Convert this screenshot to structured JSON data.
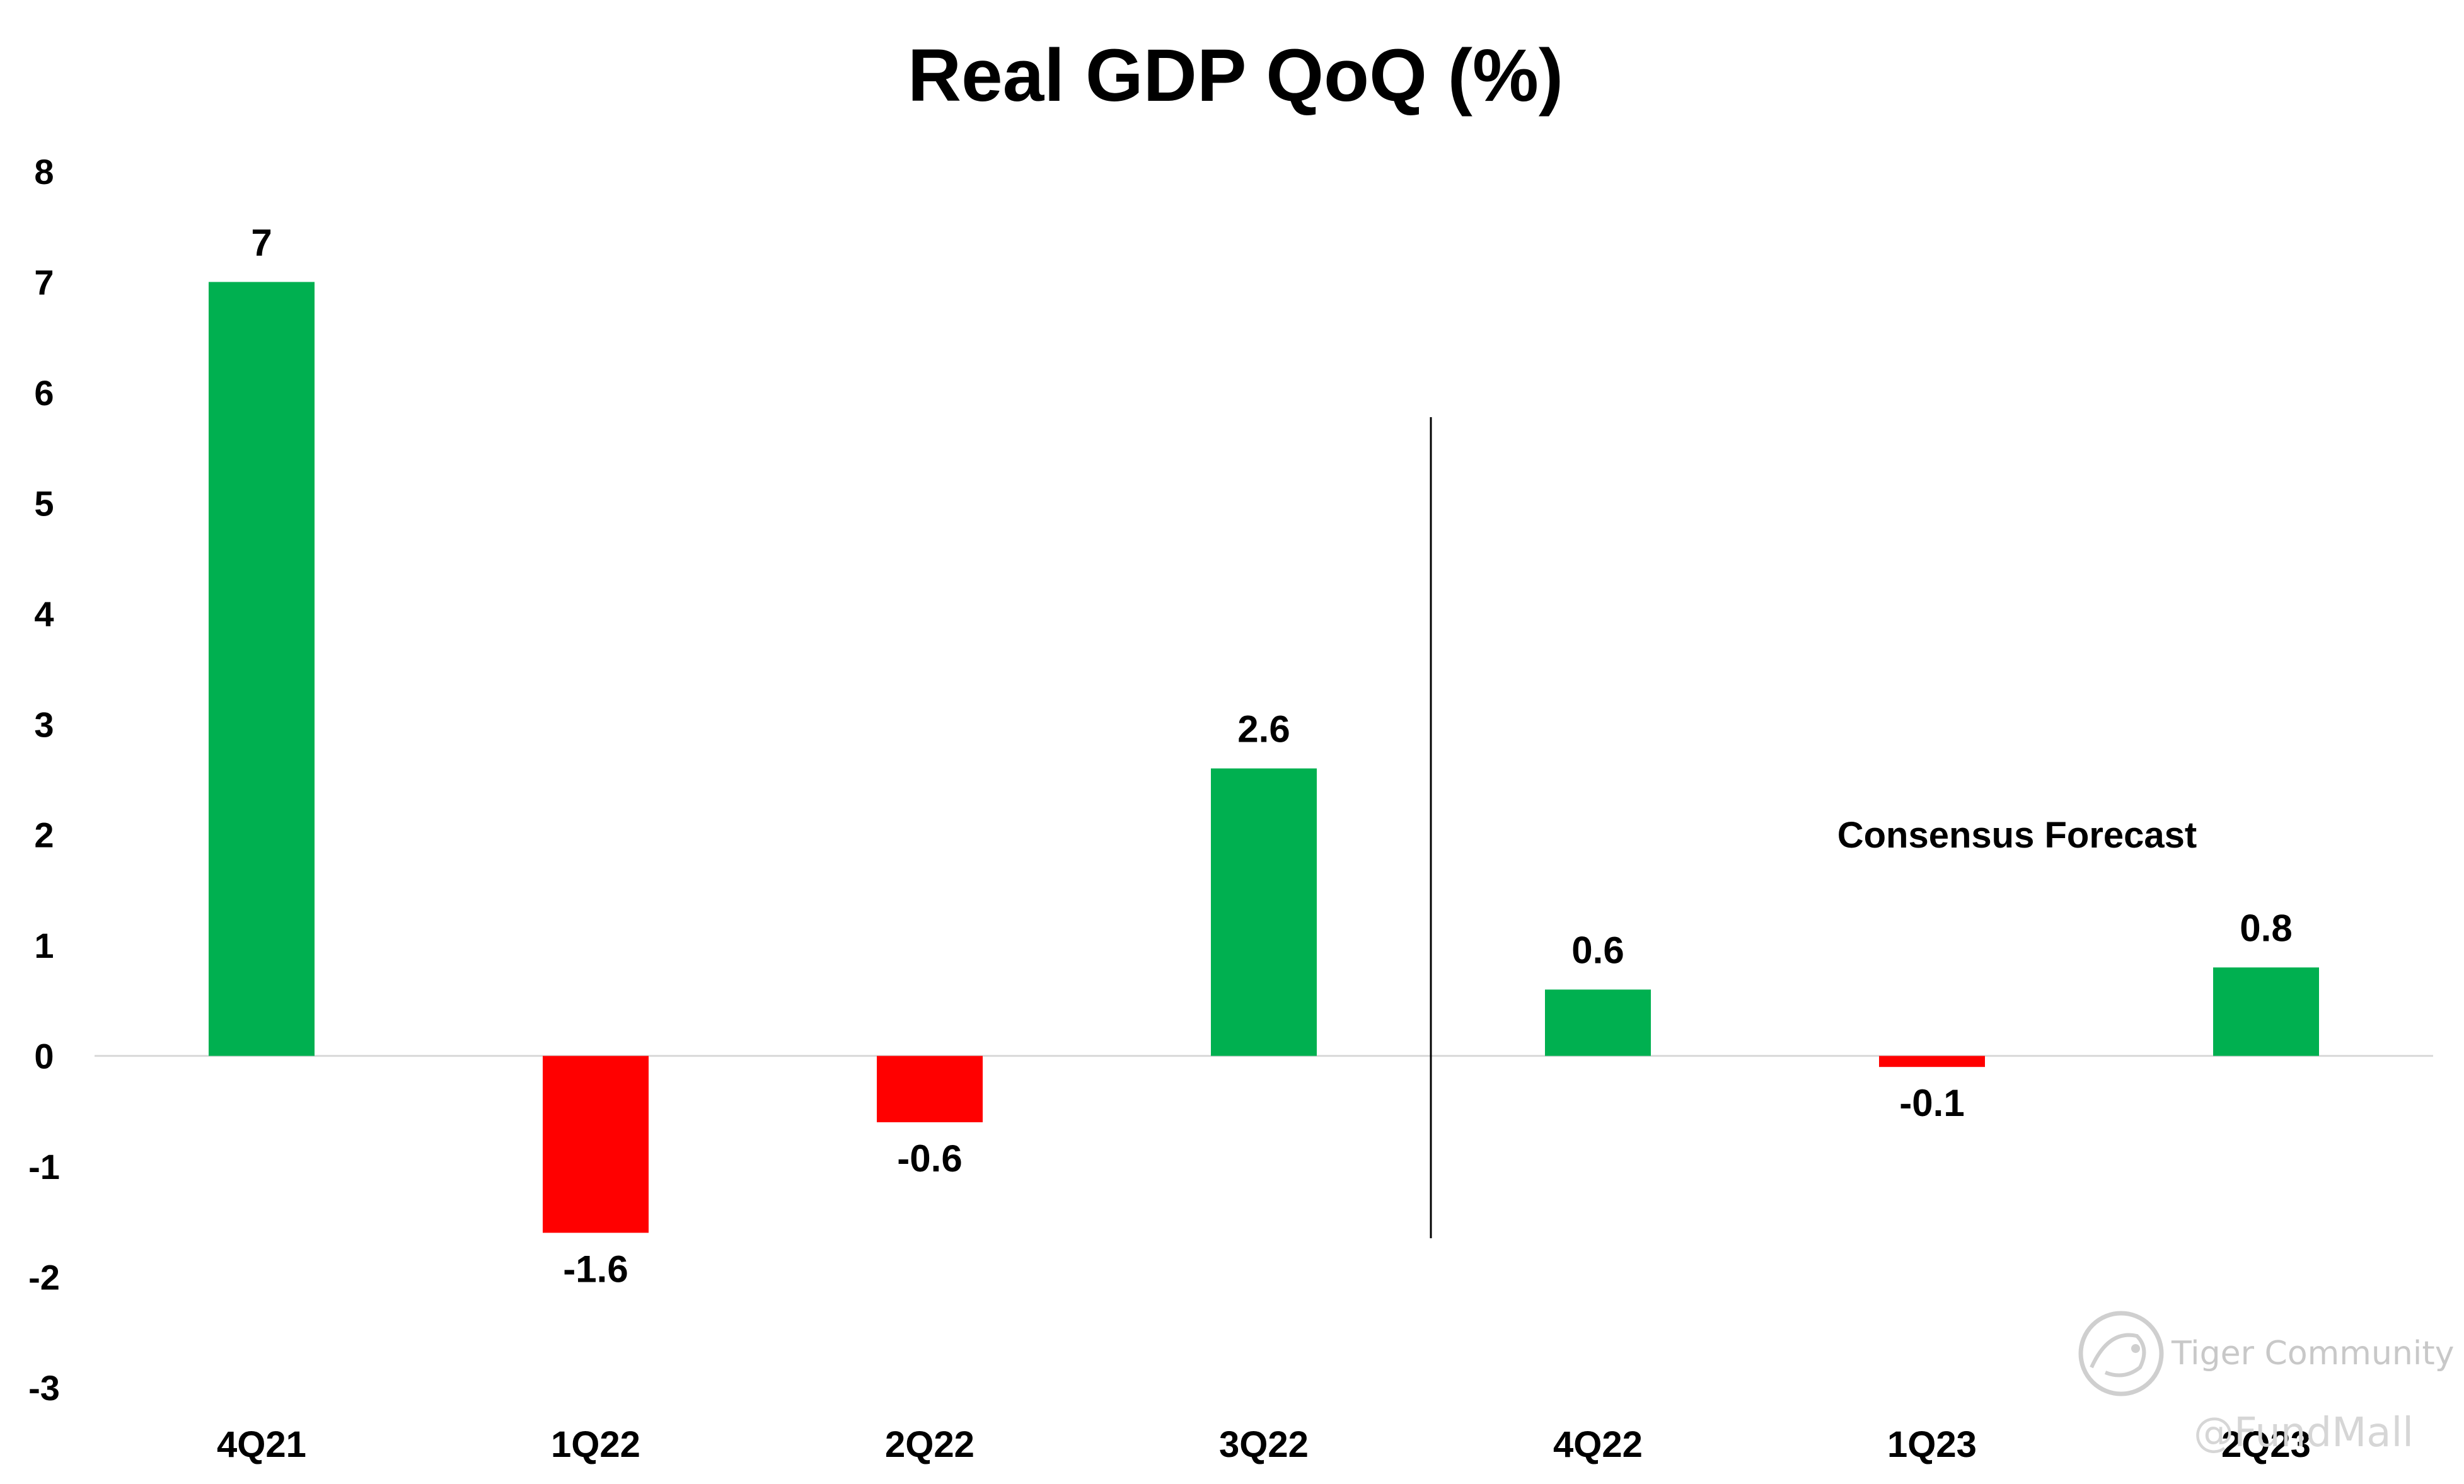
{
  "chart_data": {
    "type": "bar",
    "title": "Real GDP QoQ (%)",
    "categories": [
      "4Q21",
      "1Q22",
      "2Q22",
      "3Q22",
      "4Q22",
      "1Q23",
      "2Q23"
    ],
    "values": [
      7,
      -1.6,
      -0.6,
      2.6,
      0.6,
      -0.1,
      0.8
    ],
    "data_labels": [
      "7",
      "-1.6",
      "-0.6",
      "2.6",
      "0.6",
      "-0.1",
      "0.8"
    ],
    "ylim": [
      -3,
      8
    ],
    "yticks": [
      8,
      7,
      6,
      5,
      4,
      3,
      2,
      1,
      0,
      -1,
      -2,
      -3
    ],
    "xlabel": "",
    "ylabel": "",
    "grid": false,
    "divider_after_category": "3Q22",
    "annotation": "Consensus Forecast",
    "colors": {
      "positive": "#00B050",
      "negative": "#FF0000",
      "zero_line": "#D9D9D9",
      "divider": "#000000"
    }
  },
  "watermark": {
    "brand": "Tiger Community",
    "handle": "@FundMall"
  }
}
